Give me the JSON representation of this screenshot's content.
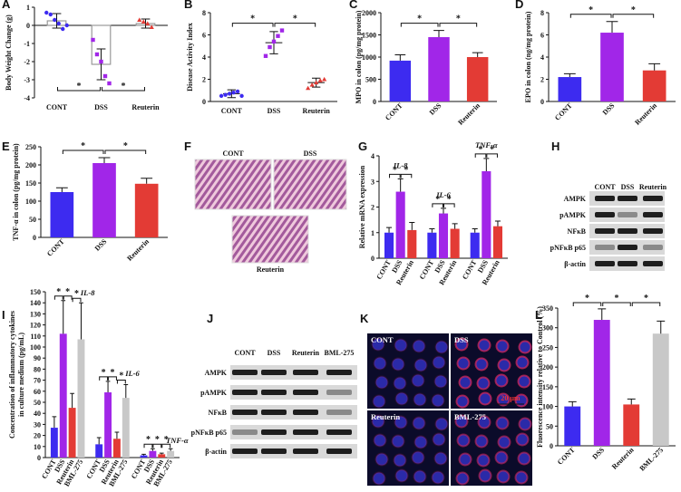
{
  "chart_data": [
    {
      "panel": "A",
      "type": "dotbar",
      "ylabel": "Body Weight Change (g)",
      "categories": [
        "CONT",
        "DSS",
        "Reuterin"
      ],
      "colors": [
        "#3d2bf0",
        "#a126e8",
        "#e33b35"
      ],
      "values": [
        0.25,
        -2.15,
        0.1
      ],
      "errors": [
        0.4,
        0.85,
        0.25
      ],
      "points": [
        [
          0.7,
          0.6,
          0.3,
          0.1,
          -0.2,
          0
        ],
        [
          -0.8,
          -1.6,
          -2.0,
          -2.8,
          -3.2
        ],
        [
          0.3,
          0.2,
          0.1,
          -0.1
        ]
      ],
      "ylim": [
        -4,
        1
      ],
      "yticks": [
        -4,
        -3,
        -2,
        -1,
        0,
        1
      ],
      "significance_side": "bottom",
      "significance": [
        {
          "between": [
            "CONT",
            "DSS"
          ],
          "label": "*"
        },
        {
          "between": [
            "DSS",
            "Reuterin"
          ],
          "label": "*"
        }
      ]
    },
    {
      "panel": "B",
      "type": "dotplot",
      "ylabel": "Disease Activity Index",
      "categories": [
        "CONT",
        "DSS",
        "Reuterin"
      ],
      "colors": [
        "#3d2bf0",
        "#a126e8",
        "#e33b35"
      ],
      "values": [
        0.7,
        5.3,
        1.7
      ],
      "errors": [
        0.35,
        1.0,
        0.4
      ],
      "points": [
        [
          0.5,
          0.6,
          0.7,
          0.8,
          0.9,
          0.5
        ],
        [
          4.1,
          4.9,
          5.4,
          5.9,
          6.4
        ],
        [
          1.2,
          1.5,
          1.7,
          1.9,
          2.0
        ]
      ],
      "ylim": [
        0,
        8
      ],
      "yticks": [
        0,
        2,
        4,
        6,
        8
      ],
      "significance_side": "top",
      "significance": [
        {
          "between": [
            "CONT",
            "DSS"
          ],
          "label": "*"
        },
        {
          "between": [
            "DSS",
            "Reuterin"
          ],
          "label": "*"
        }
      ]
    },
    {
      "panel": "C",
      "type": "bar",
      "ylabel": "MPO in colon (pg/mg protein)",
      "categories": [
        "CONT",
        "DSS",
        "Reuterin"
      ],
      "colors": [
        "#3d2bf0",
        "#a126e8",
        "#e33b35"
      ],
      "values": [
        920,
        1450,
        1000
      ],
      "errors": [
        130,
        150,
        100
      ],
      "ylim": [
        0,
        2000
      ],
      "yticks": [
        0,
        500,
        1000,
        1500,
        2000
      ],
      "significance_side": "top",
      "significance": [
        {
          "between": [
            "CONT",
            "DSS"
          ],
          "label": "*"
        },
        {
          "between": [
            "DSS",
            "Reuterin"
          ],
          "label": "*"
        }
      ]
    },
    {
      "panel": "D",
      "type": "bar",
      "ylabel": "EPO in colon (ng/mg protein)",
      "categories": [
        "CONT",
        "DSS",
        "Reuterin"
      ],
      "colors": [
        "#3d2bf0",
        "#a126e8",
        "#e33b35"
      ],
      "values": [
        2.2,
        6.2,
        2.8
      ],
      "errors": [
        0.3,
        1.0,
        0.6
      ],
      "ylim": [
        0,
        8
      ],
      "yticks": [
        0,
        2,
        4,
        6,
        8
      ],
      "significance_side": "top",
      "significance": [
        {
          "between": [
            "CONT",
            "DSS"
          ],
          "label": "*"
        },
        {
          "between": [
            "DSS",
            "Reuterin"
          ],
          "label": "*"
        }
      ]
    },
    {
      "panel": "E",
      "type": "bar",
      "ylabel": "TNF-α in colon (pg/mg protein)",
      "categories": [
        "CONT",
        "DSS",
        "Reuterin"
      ],
      "colors": [
        "#3d2bf0",
        "#a126e8",
        "#e33b35"
      ],
      "values": [
        125,
        205,
        148
      ],
      "errors": [
        12,
        15,
        15
      ],
      "ylim": [
        0,
        250
      ],
      "yticks": [
        0,
        50,
        100,
        150,
        200,
        250
      ],
      "significance_side": "top",
      "significance": [
        {
          "between": [
            "CONT",
            "DSS"
          ],
          "label": "*"
        },
        {
          "between": [
            "DSS",
            "Reuterin"
          ],
          "label": "*"
        }
      ]
    },
    {
      "panel": "G",
      "type": "grouped_bar",
      "ylabel": "Relative mRNA expression",
      "groups": [
        "IL-8",
        "IL-6",
        "TNF-α"
      ],
      "series": [
        {
          "name": "CONT",
          "color": "#3d2bf0",
          "values": [
            1,
            1,
            1
          ],
          "errors": [
            0.2,
            0.15,
            0.15
          ]
        },
        {
          "name": "DSS",
          "color": "#a126e8",
          "values": [
            2.6,
            1.75,
            3.4
          ],
          "errors": [
            0.5,
            0.2,
            0.5
          ]
        },
        {
          "name": "Reuterin",
          "color": "#e33b35",
          "values": [
            1.1,
            1.15,
            1.25
          ],
          "errors": [
            0.3,
            0.2,
            0.2
          ]
        }
      ],
      "ylim": [
        0,
        4
      ],
      "yticks": [
        0,
        1,
        2,
        3,
        4
      ],
      "significance": [
        {
          "group": "IL-8",
          "between": [
            "CONT",
            "DSS"
          ],
          "label": "*"
        },
        {
          "group": "IL-8",
          "between": [
            "DSS",
            "Reuterin"
          ],
          "label": "*"
        },
        {
          "group": "IL-6",
          "between": [
            "CONT",
            "DSS"
          ],
          "label": "*"
        },
        {
          "group": "IL-6",
          "between": [
            "DSS",
            "Reuterin"
          ],
          "label": "*"
        },
        {
          "group": "TNF-α",
          "between": [
            "CONT",
            "DSS"
          ],
          "label": "*"
        },
        {
          "group": "TNF-α",
          "between": [
            "DSS",
            "Reuterin"
          ],
          "label": "*"
        }
      ]
    },
    {
      "panel": "I",
      "type": "grouped_bar",
      "ylabel": [
        "Concentration of inflammatory cytokines",
        "in culture medium (pg/mL)"
      ],
      "groups": [
        "IL-8",
        "IL-6",
        "TNF-α"
      ],
      "series": [
        {
          "name": "CONT",
          "color": "#3d2bf0",
          "values": [
            27,
            12,
            2
          ],
          "errors": [
            10,
            6,
            1
          ]
        },
        {
          "name": "DSS",
          "color": "#a126e8",
          "values": [
            112,
            59,
            6
          ],
          "errors": [
            30,
            10,
            2
          ]
        },
        {
          "name": "Reuterin",
          "color": "#e33b35",
          "values": [
            45,
            17,
            3
          ],
          "errors": [
            13,
            6,
            1
          ]
        },
        {
          "name": "BML-275",
          "color": "#c8c8c8",
          "values": [
            107,
            54,
            6
          ],
          "errors": [
            33,
            12,
            2
          ]
        }
      ],
      "ylim": [
        0,
        150
      ],
      "yticks": [
        0,
        10,
        20,
        30,
        40,
        50,
        60,
        70,
        80,
        90,
        100,
        110,
        120,
        130,
        140,
        150
      ],
      "significance": [
        {
          "group": "IL-8",
          "between": [
            "CONT",
            "DSS"
          ],
          "label": "*"
        },
        {
          "group": "IL-8",
          "between": [
            "DSS",
            "Reuterin"
          ],
          "label": "*"
        },
        {
          "group": "IL-8",
          "between": [
            "Reuterin",
            "BML-275"
          ],
          "label": "*"
        },
        {
          "group": "IL-6",
          "between": [
            "CONT",
            "DSS"
          ],
          "label": "*"
        },
        {
          "group": "IL-6",
          "between": [
            "DSS",
            "Reuterin"
          ],
          "label": "*"
        },
        {
          "group": "IL-6",
          "between": [
            "Reuterin",
            "BML-275"
          ],
          "label": "*"
        },
        {
          "group": "TNF-α",
          "between": [
            "CONT",
            "DSS"
          ],
          "label": "*"
        },
        {
          "group": "TNF-α",
          "between": [
            "DSS",
            "Reuterin"
          ],
          "label": "*"
        },
        {
          "group": "TNF-α",
          "between": [
            "Reuterin",
            "BML-275"
          ],
          "label": "*"
        }
      ]
    },
    {
      "panel": "L",
      "type": "bar",
      "ylabel": "Fluorescence intensity relative to Control (%)",
      "categories": [
        "CONT",
        "DSS",
        "Reuterin",
        "BML-275"
      ],
      "colors": [
        "#3d2bf0",
        "#a126e8",
        "#e33b35",
        "#c8c8c8"
      ],
      "values": [
        100,
        320,
        105,
        285
      ],
      "errors": [
        12,
        28,
        14,
        32
      ],
      "ylim": [
        0,
        350
      ],
      "yticks": [
        0,
        50,
        100,
        150,
        200,
        250,
        300,
        350
      ],
      "significance_side": "top",
      "significance": [
        {
          "between": [
            "CONT",
            "DSS"
          ],
          "label": "*"
        },
        {
          "between": [
            "DSS",
            "Reuterin"
          ],
          "label": "*"
        },
        {
          "between": [
            "Reuterin",
            "BML-275"
          ],
          "label": "*"
        }
      ]
    }
  ],
  "figures": [
    {
      "panel": "F",
      "labels": [
        "CONT",
        "DSS",
        "Reuterin"
      ]
    },
    {
      "panel": "H",
      "columns": [
        "CONT",
        "DSS",
        "Reuterin"
      ],
      "rows": [
        "AMPK",
        "pAMPK",
        "NFκB",
        "pNFκB p65",
        "β-actin"
      ]
    },
    {
      "panel": "J",
      "columns": [
        "CONT",
        "DSS",
        "Reuterin",
        "BML-275"
      ],
      "rows": [
        "AMPK",
        "pAMPK",
        "NFκB",
        "pNFκB p65",
        "β-actin"
      ]
    },
    {
      "panel": "K",
      "labels": [
        "CONT",
        "DSS",
        "Reuterin",
        "BML-275"
      ],
      "scale_bar": "20 μm"
    }
  ]
}
